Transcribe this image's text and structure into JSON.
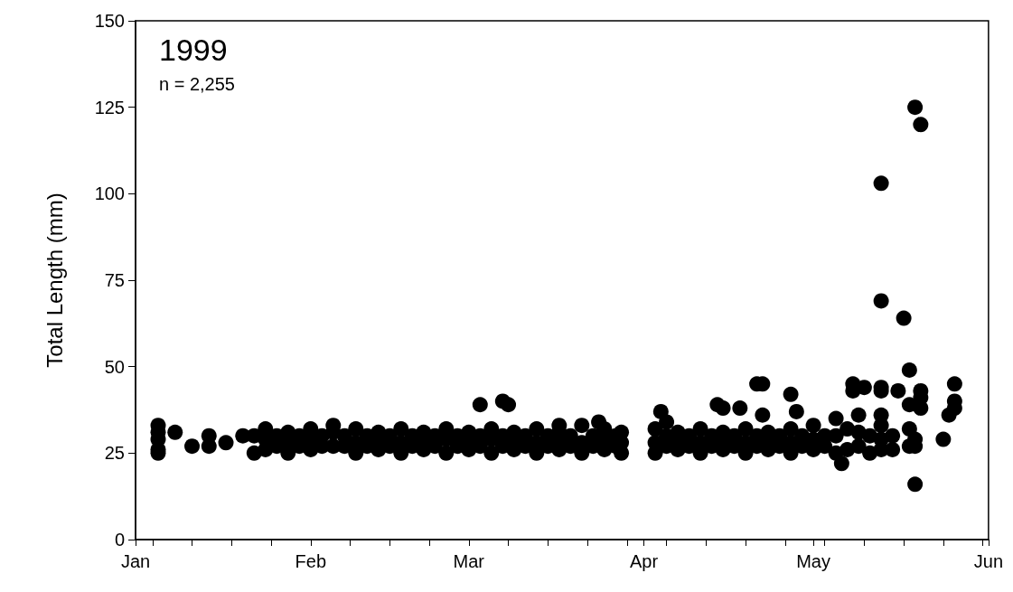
{
  "chart_data": {
    "type": "scatter",
    "ylabel": "Total Length (mm)",
    "annotations": [
      "1999",
      "n = 2,255"
    ],
    "marker": "circle",
    "color": "#000000",
    "xlim": [
      "--01-01",
      "--06-01"
    ],
    "ylim": [
      0,
      150
    ],
    "yticks": [
      0,
      25,
      50,
      75,
      100,
      125,
      150
    ],
    "xticks": [
      {
        "value": "--01-01",
        "label": "Jan"
      },
      {
        "value": "--01-04",
        "label": null
      },
      {
        "value": "--01-11",
        "label": null
      },
      {
        "value": "--01-18",
        "label": null
      },
      {
        "value": "--01-25",
        "label": null
      },
      {
        "value": "--02-01",
        "label": "Feb"
      },
      {
        "value": "--02-08",
        "label": null
      },
      {
        "value": "--02-15",
        "label": null
      },
      {
        "value": "--02-22",
        "label": null
      },
      {
        "value": "--03-01",
        "label": "Mar"
      },
      {
        "value": "--03-08",
        "label": null
      },
      {
        "value": "--03-15",
        "label": null
      },
      {
        "value": "--03-22",
        "label": null
      },
      {
        "value": "--03-29",
        "label": null
      },
      {
        "value": "--04-01",
        "label": "Apr"
      },
      {
        "value": "--04-05",
        "label": null
      },
      {
        "value": "--04-12",
        "label": null
      },
      {
        "value": "--04-19",
        "label": null
      },
      {
        "value": "--04-26",
        "label": null
      },
      {
        "value": "--05-01",
        "label": "May"
      },
      {
        "value": "--05-03",
        "label": null
      },
      {
        "value": "--05-10",
        "label": null
      },
      {
        "value": "--05-17",
        "label": null
      },
      {
        "value": "--05-24",
        "label": null
      },
      {
        "value": "--05-31",
        "label": null
      },
      {
        "value": "--06-01",
        "label": "Jun"
      }
    ],
    "x": [
      "--01-05",
      "--01-05",
      "--01-05",
      "--01-05",
      "--01-05",
      "--01-08",
      "--01-11",
      "--01-14",
      "--01-14",
      "--01-17",
      "--01-20",
      "--01-22",
      "--01-22",
      "--01-24",
      "--01-24",
      "--01-24",
      "--01-28",
      "--01-28",
      "--01-28",
      "--02-01",
      "--02-01",
      "--02-01",
      "--02-05",
      "--02-05",
      "--02-05",
      "--02-09",
      "--02-09",
      "--02-09",
      "--02-13",
      "--02-13",
      "--02-13",
      "--02-17",
      "--02-17",
      "--02-17",
      "--02-21",
      "--02-21",
      "--02-21",
      "--02-25",
      "--02-25",
      "--02-25",
      "--03-01",
      "--03-01",
      "--03-01",
      "--03-05",
      "--03-05",
      "--03-05",
      "--03-09",
      "--03-09",
      "--03-09",
      "--03-13",
      "--03-13",
      "--03-13",
      "--03-17",
      "--03-17",
      "--03-17",
      "--03-21",
      "--03-21",
      "--03-21",
      "--03-25",
      "--03-25",
      "--03-25",
      "--03-28",
      "--03-28",
      "--03-28",
      "--04-03",
      "--04-03",
      "--04-03",
      "--04-07",
      "--04-07",
      "--04-07",
      "--04-11",
      "--04-11",
      "--04-11",
      "--04-15",
      "--04-15",
      "--04-15",
      "--04-19",
      "--04-19",
      "--04-19",
      "--04-23",
      "--04-23",
      "--04-23",
      "--04-27",
      "--04-27",
      "--04-27",
      "--05-01",
      "--05-01",
      "--05-01",
      "--05-03",
      "--05-03",
      "--05-05",
      "--05-05",
      "--05-05",
      "--05-07",
      "--05-07",
      "--05-09",
      "--05-09",
      "--05-09",
      "--05-11",
      "--05-11",
      "--05-13",
      "--05-13",
      "--05-13",
      "--05-15",
      "--05-15",
      "--03-03",
      "--03-07",
      "--03-08",
      "--03-17",
      "--03-24",
      "--04-04",
      "--04-05",
      "--04-14",
      "--04-15",
      "--04-18",
      "--04-21",
      "--04-22",
      "--04-22",
      "--04-27",
      "--04-28",
      "--05-06",
      "--05-08",
      "--05-08",
      "--05-10",
      "--05-13",
      "--05-13",
      "--05-13",
      "--05-13",
      "--05-13",
      "--05-16",
      "--05-17",
      "--05-18",
      "--05-18",
      "--05-18",
      "--05-18",
      "--05-19",
      "--05-19",
      "--05-19",
      "--05-19",
      "--05-20",
      "--05-20",
      "--05-20",
      "--05-20",
      "--05-24",
      "--05-25",
      "--05-26",
      "--05-26",
      "--05-26",
      "--01-26",
      "--01-26",
      "--01-30",
      "--01-30",
      "--02-03",
      "--02-03",
      "--02-07",
      "--02-07",
      "--02-11",
      "--02-11",
      "--02-15",
      "--02-15",
      "--02-19",
      "--02-19",
      "--02-23",
      "--02-23",
      "--02-27",
      "--02-27",
      "--03-03",
      "--03-03",
      "--03-07",
      "--03-07",
      "--03-11",
      "--03-11",
      "--03-15",
      "--03-15",
      "--03-19",
      "--03-19",
      "--03-23",
      "--03-23",
      "--03-27",
      "--03-27",
      "--04-05",
      "--04-05",
      "--04-09",
      "--04-09",
      "--04-13",
      "--04-13",
      "--04-17",
      "--04-17",
      "--04-21",
      "--04-21",
      "--04-25",
      "--04-25",
      "--04-29",
      "--04-29"
    ],
    "values": [
      25,
      26,
      29,
      31,
      33,
      31,
      27,
      27,
      30,
      28,
      30,
      25,
      30,
      26,
      29,
      32,
      25,
      28,
      31,
      26,
      29,
      32,
      27,
      33,
      31,
      25,
      28,
      32,
      26,
      29,
      31,
      25,
      28,
      32,
      26,
      28,
      31,
      25,
      29,
      32,
      26,
      28,
      31,
      25,
      29,
      32,
      26,
      28,
      31,
      25,
      28,
      32,
      26,
      29,
      31,
      25,
      28,
      33,
      26,
      29,
      32,
      25,
      28,
      31,
      25,
      28,
      32,
      26,
      29,
      31,
      25,
      28,
      32,
      26,
      29,
      31,
      25,
      28,
      32,
      26,
      29,
      31,
      25,
      28,
      32,
      26,
      29,
      33,
      27,
      30,
      25,
      30,
      35,
      26,
      32,
      27,
      31,
      36,
      25,
      30,
      26,
      29,
      33,
      26,
      30,
      39,
      40,
      39,
      33,
      34,
      37,
      34,
      39,
      38,
      38,
      45,
      45,
      36,
      42,
      37,
      22,
      45,
      43,
      44,
      103,
      69,
      44,
      43,
      36,
      43,
      64,
      49,
      39,
      32,
      27,
      125,
      16,
      29,
      27,
      120,
      43,
      41,
      38,
      29,
      36,
      40,
      38,
      45,
      27,
      30,
      27,
      30,
      27,
      30,
      27,
      30,
      27,
      30,
      27,
      30,
      27,
      30,
      27,
      30,
      27,
      30,
      27,
      30,
      27,
      30,
      27,
      30,
      27,
      30,
      27,
      30,
      27,
      30,
      27,
      30,
      27,
      30,
      27,
      30,
      27,
      30,
      27,
      30,
      27,
      30,
      27,
      30,
      27,
      30
    ]
  }
}
